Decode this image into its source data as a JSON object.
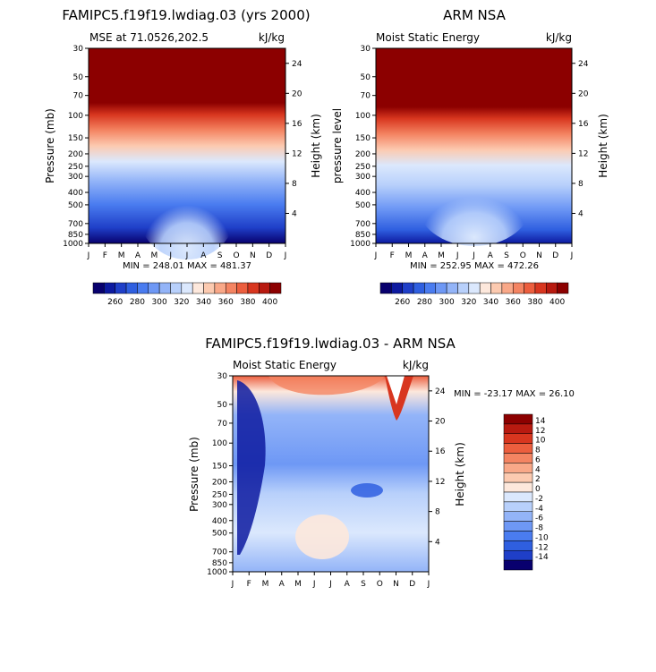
{
  "panels": [
    {
      "id": "model",
      "title": "FAMIPC5.f19f19.lwdiag.03 (yrs 2000)",
      "left_label": "MSE at 71.0526,202.5",
      "right_label": "kJ/kg",
      "ylabel": "Pressure (mb)",
      "y2label": "Height (km)",
      "minmax": "MIN = 248.01  MAX = 481.37"
    },
    {
      "id": "obs",
      "title": "ARM NSA",
      "left_label": "Moist Static Energy",
      "right_label": "kJ/kg",
      "ylabel": "pressure level",
      "y2label": "Height (km)",
      "minmax": "MIN = 252.95  MAX = 472.26"
    },
    {
      "id": "diff",
      "title": "FAMIPC5.f19f19.lwdiag.03 - ARM NSA",
      "left_label": "Moist Static Energy",
      "right_label": "kJ/kg",
      "ylabel": "Pressure (mb)",
      "y2label": "Height (km)",
      "minmax": "MIN = -23.17 MAX =   26.10"
    }
  ],
  "chart_data": [
    {
      "type": "heatmap",
      "title": "FAMIPC5.f19f19.lwdiag.03 (yrs 2000)",
      "xlabel": "",
      "ylabel": "Pressure (mb)",
      "x_ticks": [
        "J",
        "F",
        "M",
        "A",
        "M",
        "J",
        "J",
        "A",
        "S",
        "O",
        "N",
        "D",
        "J"
      ],
      "y_ticks": [
        "30",
        "50",
        "70",
        "100",
        "150",
        "200",
        "250",
        "300",
        "400",
        "500",
        "700",
        "850",
        "1000"
      ],
      "y2_ticks": [
        "24",
        "20",
        "16",
        "12",
        "8",
        "4"
      ],
      "colorbar_levels": [
        "260",
        "280",
        "300",
        "320",
        "340",
        "360",
        "380",
        "400"
      ],
      "min": 248.01,
      "max": 481.37,
      "units": "kJ/kg"
    },
    {
      "type": "heatmap",
      "title": "ARM NSA",
      "xlabel": "",
      "ylabel": "pressure level",
      "x_ticks": [
        "J",
        "F",
        "M",
        "A",
        "M",
        "J",
        "J",
        "A",
        "S",
        "O",
        "N",
        "D",
        "J"
      ],
      "y_ticks": [
        "30",
        "50",
        "70",
        "100",
        "150",
        "200",
        "250",
        "300",
        "400",
        "500",
        "700",
        "850",
        "1000"
      ],
      "y2_ticks": [
        "24",
        "20",
        "16",
        "12",
        "8",
        "4"
      ],
      "colorbar_levels": [
        "260",
        "280",
        "300",
        "320",
        "340",
        "360",
        "380",
        "400"
      ],
      "min": 252.95,
      "max": 472.26,
      "units": "kJ/kg"
    },
    {
      "type": "heatmap",
      "title": "FAMIPC5.f19f19.lwdiag.03 - ARM NSA",
      "xlabel": "",
      "ylabel": "Pressure (mb)",
      "x_ticks": [
        "J",
        "F",
        "M",
        "A",
        "M",
        "J",
        "J",
        "A",
        "S",
        "O",
        "N",
        "D",
        "J"
      ],
      "y_ticks": [
        "30",
        "50",
        "70",
        "100",
        "150",
        "200",
        "250",
        "300",
        "400",
        "500",
        "700",
        "850",
        "1000"
      ],
      "y2_ticks": [
        "24",
        "20",
        "16",
        "12",
        "8",
        "4"
      ],
      "colorbar_levels": [
        "14",
        "12",
        "10",
        "8",
        "6",
        "4",
        "2",
        "0",
        "-2",
        "-4",
        "-6",
        "-8",
        "-10",
        "-12",
        "-14"
      ],
      "min": -23.17,
      "max": 26.1,
      "units": "kJ/kg"
    }
  ],
  "colors": {
    "abs_scale": [
      "#08006e",
      "#0d1aa0",
      "#1f3fc8",
      "#2f5fe0",
      "#4a7cf0",
      "#6e98f5",
      "#93b4f8",
      "#b8d0fb",
      "#dbe8fd",
      "#fde8dc",
      "#fccab0",
      "#f9a888",
      "#f48462",
      "#ec5e3e",
      "#d8361f",
      "#b81a10",
      "#8c0000"
    ],
    "diff_scale": [
      "#8c0000",
      "#b81a10",
      "#d8361f",
      "#ec5e3e",
      "#f48462",
      "#f9a888",
      "#fccab0",
      "#fde8dc",
      "#dbe8fd",
      "#b8d0fb",
      "#93b4f8",
      "#6e98f5",
      "#4a7cf0",
      "#2f5fe0",
      "#1f3fc8",
      "#08006e"
    ]
  }
}
